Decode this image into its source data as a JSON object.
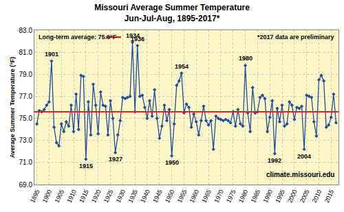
{
  "chart_data": {
    "type": "line",
    "title": "Missouri Average Summer Temperature",
    "subtitle": "Jun-Jul-Aug, 1895-2017*",
    "y_label": "Average Summer Temperature (°F)",
    "color": "#1f4e9c",
    "marker": "diamond",
    "grid": true,
    "x": [
      1895,
      1896,
      1897,
      1898,
      1899,
      1900,
      1901,
      1902,
      1903,
      1904,
      1905,
      1906,
      1907,
      1908,
      1909,
      1910,
      1911,
      1912,
      1913,
      1914,
      1915,
      1916,
      1917,
      1918,
      1919,
      1920,
      1921,
      1922,
      1923,
      1924,
      1925,
      1926,
      1927,
      1928,
      1929,
      1930,
      1931,
      1932,
      1933,
      1934,
      1935,
      1936,
      1937,
      1938,
      1939,
      1940,
      1941,
      1942,
      1943,
      1944,
      1945,
      1946,
      1947,
      1948,
      1949,
      1950,
      1951,
      1952,
      1953,
      1954,
      1955,
      1956,
      1957,
      1958,
      1959,
      1960,
      1961,
      1962,
      1963,
      1964,
      1965,
      1966,
      1967,
      1968,
      1969,
      1970,
      1971,
      1972,
      1973,
      1974,
      1975,
      1976,
      1977,
      1978,
      1979,
      1980,
      1981,
      1982,
      1983,
      1984,
      1985,
      1986,
      1987,
      1988,
      1989,
      1990,
      1991,
      1992,
      1993,
      1994,
      1995,
      1996,
      1997,
      1998,
      1999,
      2000,
      2001,
      2002,
      2003,
      2004,
      2005,
      2006,
      2007,
      2008,
      2009,
      2010,
      2011,
      2012,
      2013,
      2014,
      2015,
      2016,
      2017
    ],
    "values": [
      74.5,
      75.7,
      75.6,
      75.8,
      76.2,
      76.5,
      80.2,
      74.2,
      72.8,
      72.5,
      74.5,
      73.8,
      74.7,
      74.3,
      76.2,
      73.8,
      77.2,
      74.0,
      78.9,
      78.8,
      71.3,
      76.5,
      73.5,
      78.1,
      76.2,
      73.6,
      77.4,
      76.2,
      76.1,
      73.5,
      76.6,
      75.0,
      71.9,
      73.5,
      74.8,
      76.9,
      76.8,
      76.9,
      77.0,
      81.9,
      75.6,
      81.6,
      77.0,
      77.1,
      76.0,
      75.0,
      76.6,
      75.2,
      77.6,
      75.0,
      73.2,
      74.3,
      76.2,
      74.8,
      75.8,
      71.6,
      74.5,
      78.0,
      78.4,
      79.1,
      75.5,
      76.3,
      76.0,
      74.2,
      75.4,
      74.7,
      73.5,
      74.8,
      76.1,
      74.8,
      74.4,
      74.8,
      72.2,
      75.2,
      75.0,
      74.9,
      74.8,
      74.9,
      74.8,
      74.6,
      75.6,
      74.3,
      75.8,
      74.5,
      74.3,
      79.8,
      75.5,
      73.8,
      77.8,
      75.5,
      75.6,
      76.9,
      77.1,
      76.8,
      73.8,
      75.1,
      76.6,
      71.8,
      75.9,
      74.7,
      76.2,
      74.3,
      74.5,
      76.5,
      76.2,
      74.9,
      76.0,
      75.9,
      76.1,
      72.2,
      77.1,
      77.0,
      76.9,
      74.7,
      73.4,
      78.5,
      78.9,
      78.4,
      74.2,
      74.4,
      75.1,
      77.2,
      74.6
    ],
    "xlim": [
      1894,
      2018
    ],
    "xticks": [
      1895,
      1900,
      1905,
      1910,
      1915,
      1920,
      1925,
      1930,
      1935,
      1940,
      1945,
      1950,
      1955,
      1960,
      1965,
      1970,
      1975,
      1980,
      1985,
      1990,
      1995,
      2000,
      2005,
      2010,
      2015
    ],
    "ylim": [
      69,
      83
    ],
    "yticks": [
      {
        "value": 69,
        "label": "69.0"
      },
      {
        "value": 71,
        "label": "71.0"
      },
      {
        "value": 73,
        "label": "73.0"
      },
      {
        "value": 75,
        "label": "75.0"
      },
      {
        "value": 77,
        "label": "77.0"
      },
      {
        "value": 79,
        "label": "79.0"
      },
      {
        "value": 81,
        "label": "81.0"
      },
      {
        "value": 83,
        "label": "83.0"
      }
    ],
    "average": {
      "label": "Long-term average: 75.6°F",
      "value": 75.6,
      "color": "#e02020"
    },
    "notes": [
      "*2017 data are preliminary",
      "climate.missouri.edu"
    ],
    "annotations": [
      {
        "text": "1901",
        "x": 1901
      },
      {
        "text": "1915",
        "x": 1915
      },
      {
        "text": "1927",
        "x": 1927
      },
      {
        "text": "1934",
        "x": 1934
      },
      {
        "text": "1936",
        "x": 1936
      },
      {
        "text": "1950",
        "x": 1950
      },
      {
        "text": "1954",
        "x": 1954
      },
      {
        "text": "1980",
        "x": 1980
      },
      {
        "text": "1992",
        "x": 1992
      },
      {
        "text": "2004",
        "x": 2004
      }
    ]
  }
}
